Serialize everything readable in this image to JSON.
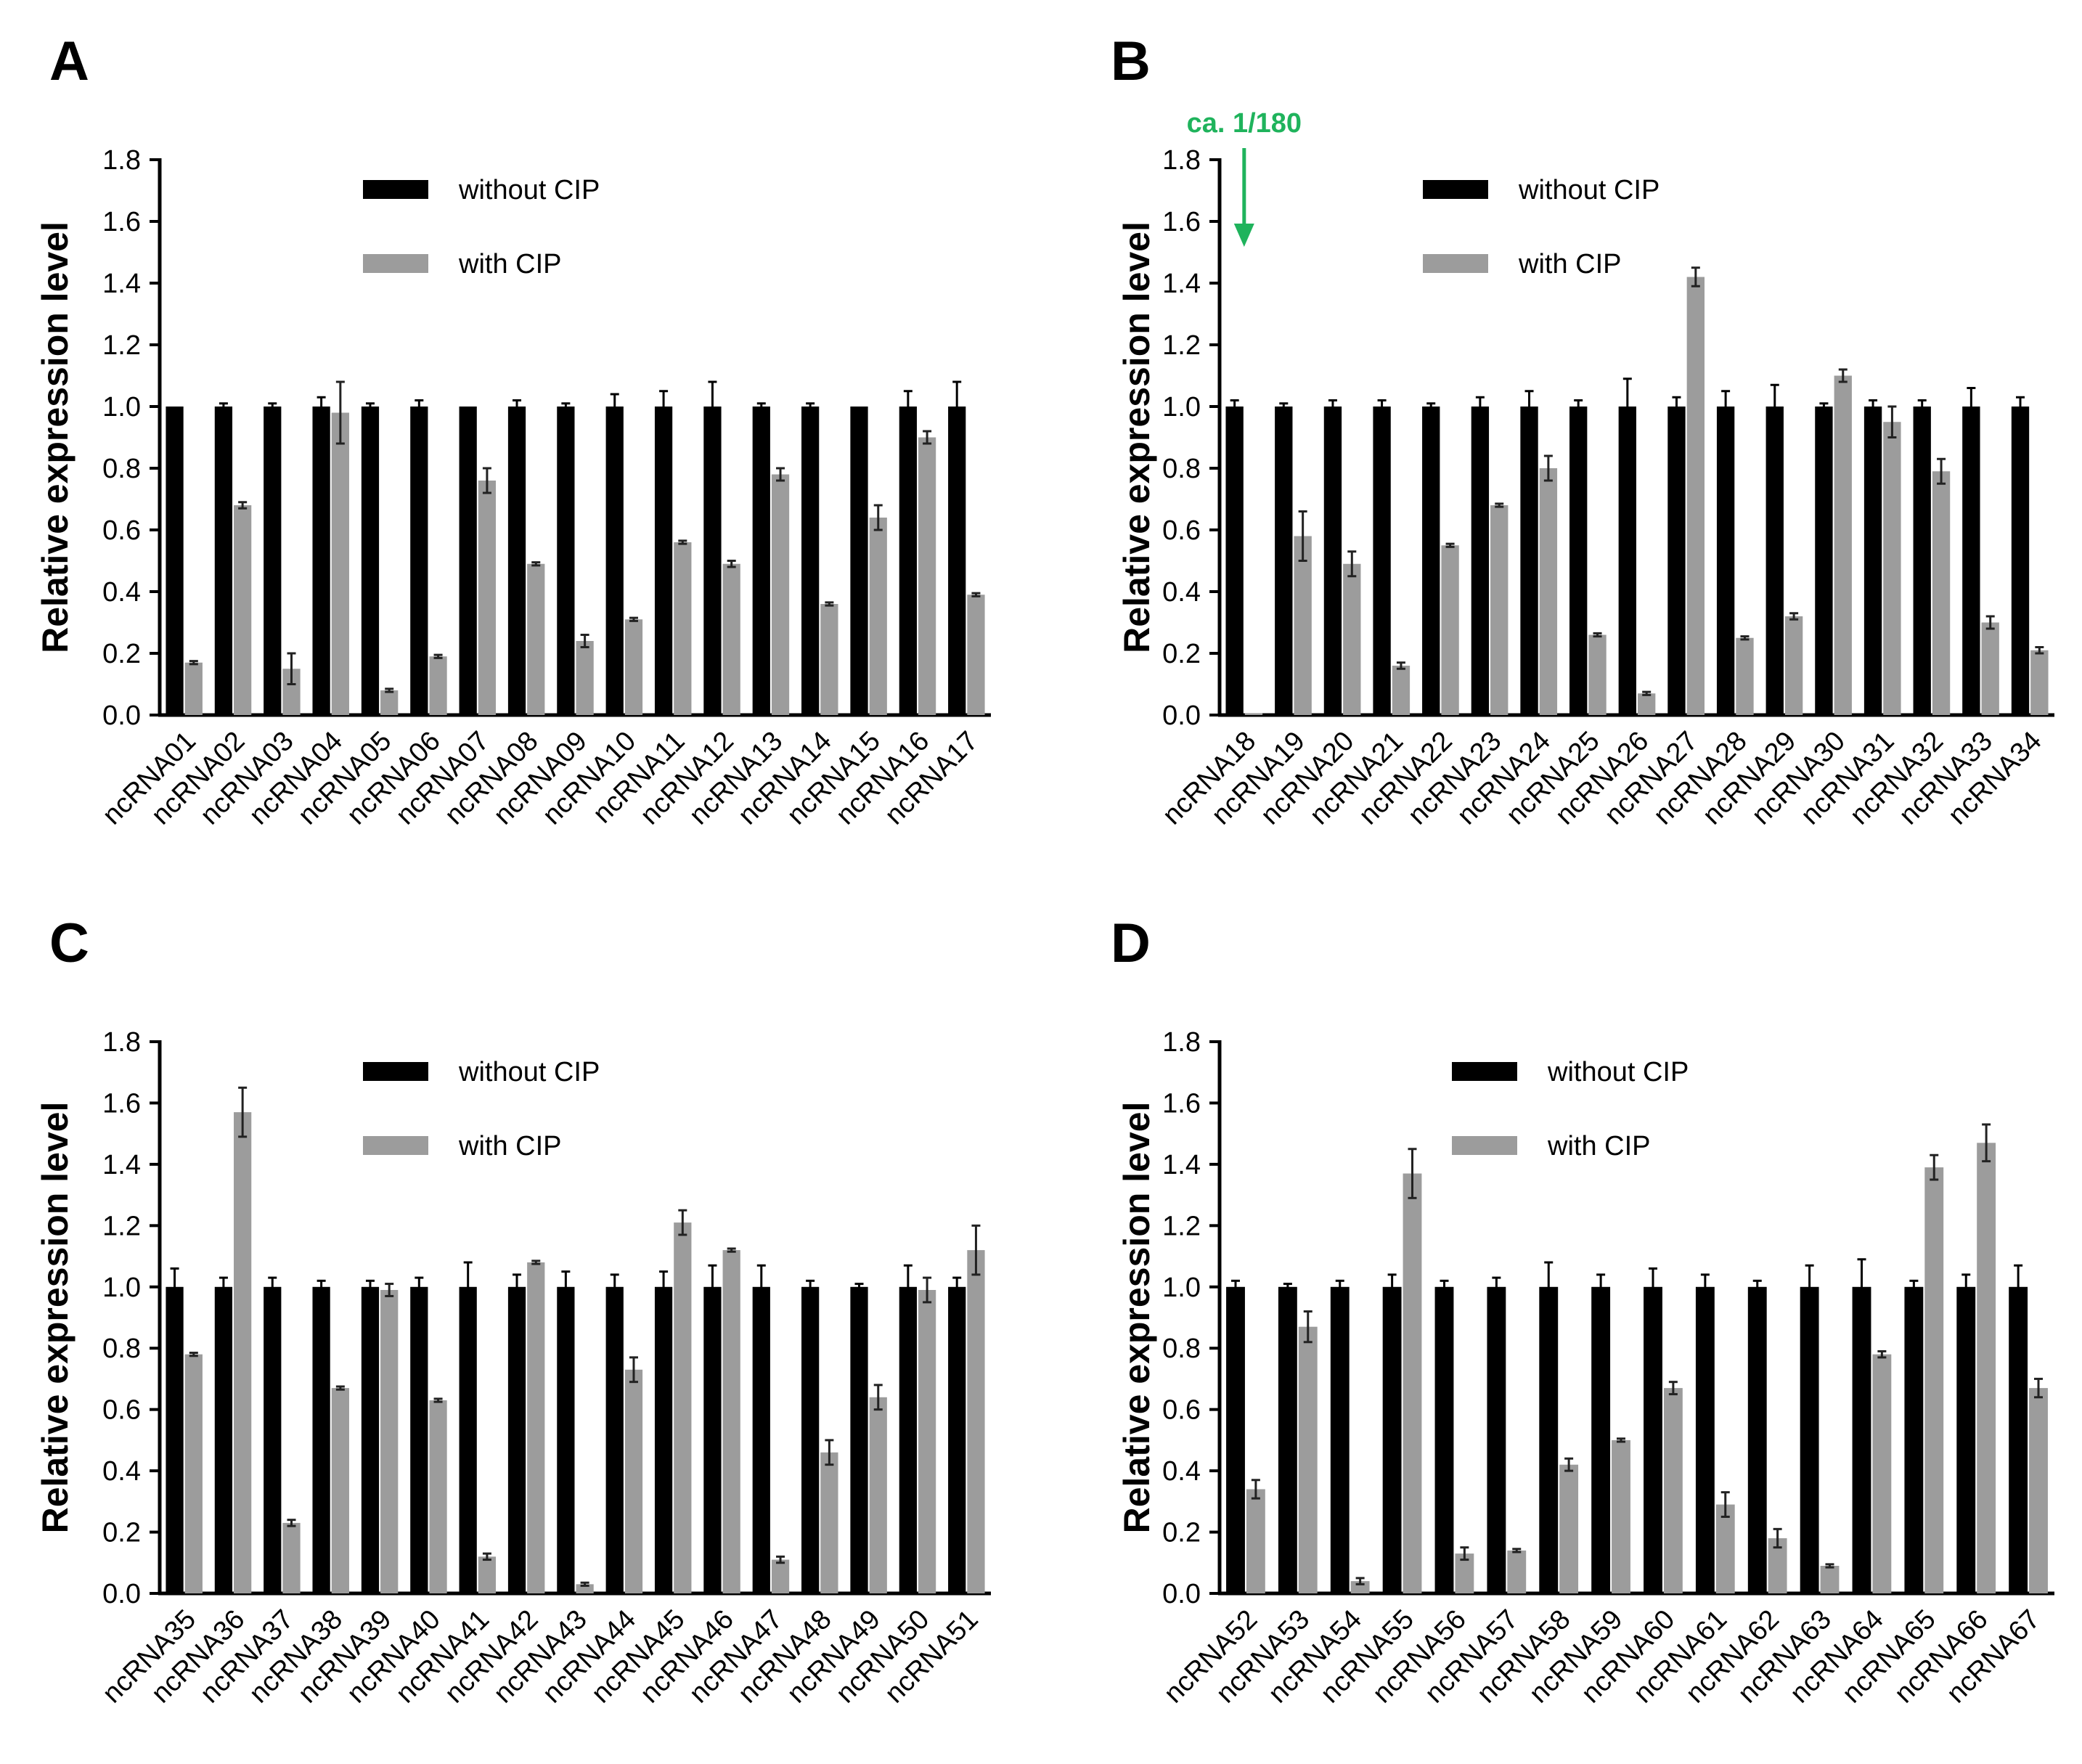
{
  "colors": {
    "without_cip": "#000000",
    "with_cip": "#9c9c9c",
    "annotation": "#1fb35c",
    "axis": "#000000"
  },
  "chart_data": [
    {
      "panel_label": "A",
      "type": "bar",
      "title": "",
      "xlabel": "",
      "ylabel": "Relative expression level",
      "ylim": [
        0,
        1.8
      ],
      "yticks": [
        "0.0",
        "0.2",
        "0.4",
        "0.6",
        "0.8",
        "1.0",
        "1.2",
        "1.4",
        "1.6",
        "1.8"
      ],
      "legend_position": "top-center",
      "categories": [
        "ncRNA01",
        "ncRNA02",
        "ncRNA03",
        "ncRNA04",
        "ncRNA05",
        "ncRNA06",
        "ncRNA07",
        "ncRNA08",
        "ncRNA09",
        "ncRNA10",
        "ncRNA11",
        "ncRNA12",
        "ncRNA13",
        "ncRNA14",
        "ncRNA15",
        "ncRNA16",
        "ncRNA17"
      ],
      "series": [
        {
          "name": "without CIP",
          "values": [
            1.0,
            1.0,
            1.0,
            1.0,
            1.0,
            1.0,
            1.0,
            1.0,
            1.0,
            1.0,
            1.0,
            1.0,
            1.0,
            1.0,
            1.0,
            1.0,
            1.0
          ],
          "errors": [
            0.0,
            0.01,
            0.01,
            0.03,
            0.01,
            0.02,
            0.0,
            0.02,
            0.01,
            0.04,
            0.05,
            0.08,
            0.01,
            0.01,
            0.0,
            0.05,
            0.08
          ]
        },
        {
          "name": "with CIP",
          "values": [
            0.17,
            0.68,
            0.15,
            0.98,
            0.08,
            0.19,
            0.76,
            0.49,
            0.24,
            0.31,
            0.56,
            0.49,
            0.78,
            0.36,
            0.64,
            0.9,
            0.39
          ],
          "errors": [
            0.005,
            0.01,
            0.05,
            0.1,
            0.005,
            0.005,
            0.04,
            0.005,
            0.02,
            0.005,
            0.005,
            0.01,
            0.02,
            0.005,
            0.04,
            0.02,
            0.005
          ]
        }
      ]
    },
    {
      "panel_label": "B",
      "type": "bar",
      "title": "",
      "xlabel": "",
      "ylabel": "Relative expression level",
      "ylim": [
        0,
        1.8
      ],
      "yticks": [
        "0.0",
        "0.2",
        "0.4",
        "0.6",
        "0.8",
        "1.0",
        "1.2",
        "1.4",
        "1.6",
        "1.8"
      ],
      "legend_position": "top-center",
      "annotation": {
        "text": "ca. 1/180",
        "category": "ncRNA18"
      },
      "categories": [
        "ncRNA18",
        "ncRNA19",
        "ncRNA20",
        "ncRNA21",
        "ncRNA22",
        "ncRNA23",
        "ncRNA24",
        "ncRNA25",
        "ncRNA26",
        "ncRNA27",
        "ncRNA28",
        "ncRNA29",
        "ncRNA30",
        "ncRNA31",
        "ncRNA32",
        "ncRNA33",
        "ncRNA34"
      ],
      "series": [
        {
          "name": "without CIP",
          "values": [
            1.0,
            1.0,
            1.0,
            1.0,
            1.0,
            1.0,
            1.0,
            1.0,
            1.0,
            1.0,
            1.0,
            1.0,
            1.0,
            1.0,
            1.0,
            1.0,
            1.0
          ],
          "errors": [
            0.02,
            0.01,
            0.02,
            0.02,
            0.01,
            0.03,
            0.05,
            0.02,
            0.09,
            0.03,
            0.05,
            0.07,
            0.01,
            0.02,
            0.02,
            0.06,
            0.03
          ]
        },
        {
          "name": "with CIP",
          "values": [
            0.006,
            0.58,
            0.49,
            0.16,
            0.55,
            0.68,
            0.8,
            0.26,
            0.07,
            1.42,
            0.25,
            0.32,
            1.1,
            0.95,
            0.79,
            0.3,
            0.21
          ],
          "errors": [
            0.0,
            0.08,
            0.04,
            0.01,
            0.005,
            0.005,
            0.04,
            0.005,
            0.005,
            0.03,
            0.005,
            0.01,
            0.02,
            0.05,
            0.04,
            0.02,
            0.01
          ]
        }
      ]
    },
    {
      "panel_label": "C",
      "type": "bar",
      "title": "",
      "xlabel": "",
      "ylabel": "Relative expression level",
      "ylim": [
        0,
        1.8
      ],
      "yticks": [
        "0.0",
        "0.2",
        "0.4",
        "0.6",
        "0.8",
        "1.0",
        "1.2",
        "1.4",
        "1.6",
        "1.8"
      ],
      "legend_position": "top-center",
      "categories": [
        "ncRNA35",
        "ncRNA36",
        "ncRNA37",
        "ncRNA38",
        "ncRNA39",
        "ncRNA40",
        "ncRNA41",
        "ncRNA42",
        "ncRNA43",
        "ncRNA44",
        "ncRNA45",
        "ncRNA46",
        "ncRNA47",
        "ncRNA48",
        "ncRNA49",
        "ncRNA50",
        "ncRNA51"
      ],
      "series": [
        {
          "name": "without CIP",
          "values": [
            1.0,
            1.0,
            1.0,
            1.0,
            1.0,
            1.0,
            1.0,
            1.0,
            1.0,
            1.0,
            1.0,
            1.0,
            1.0,
            1.0,
            1.0,
            1.0,
            1.0
          ],
          "errors": [
            0.06,
            0.03,
            0.03,
            0.02,
            0.02,
            0.03,
            0.08,
            0.04,
            0.05,
            0.04,
            0.05,
            0.07,
            0.07,
            0.02,
            0.01,
            0.07,
            0.03
          ]
        },
        {
          "name": "with CIP",
          "values": [
            0.78,
            1.57,
            0.23,
            0.67,
            0.99,
            0.63,
            0.12,
            1.08,
            0.03,
            0.73,
            1.21,
            1.12,
            0.11,
            0.46,
            0.64,
            0.99,
            1.12
          ],
          "errors": [
            0.005,
            0.08,
            0.01,
            0.005,
            0.02,
            0.005,
            0.01,
            0.005,
            0.005,
            0.04,
            0.04,
            0.005,
            0.01,
            0.04,
            0.04,
            0.04,
            0.08
          ]
        }
      ]
    },
    {
      "panel_label": "D",
      "type": "bar",
      "title": "",
      "xlabel": "",
      "ylabel": "Relative expression level",
      "ylim": [
        0,
        1.8
      ],
      "yticks": [
        "0.0",
        "0.2",
        "0.4",
        "0.6",
        "0.8",
        "1.0",
        "1.2",
        "1.4",
        "1.6",
        "1.8"
      ],
      "legend_position": "top-center",
      "categories": [
        "ncRNA52",
        "ncRNA53",
        "ncRNA54",
        "ncRNA55",
        "ncRNA56",
        "ncRNA57",
        "ncRNA58",
        "ncRNA59",
        "ncRNA60",
        "ncRNA61",
        "ncRNA62",
        "ncRNA63",
        "ncRNA64",
        "ncRNA65",
        "ncRNA66",
        "ncRNA67"
      ],
      "series": [
        {
          "name": "without CIP",
          "values": [
            1.0,
            1.0,
            1.0,
            1.0,
            1.0,
            1.0,
            1.0,
            1.0,
            1.0,
            1.0,
            1.0,
            1.0,
            1.0,
            1.0,
            1.0,
            1.0
          ],
          "errors": [
            0.02,
            0.01,
            0.02,
            0.04,
            0.02,
            0.03,
            0.08,
            0.04,
            0.06,
            0.04,
            0.02,
            0.07,
            0.09,
            0.02,
            0.04,
            0.07
          ]
        },
        {
          "name": "with CIP",
          "values": [
            0.34,
            0.87,
            0.04,
            1.37,
            0.13,
            0.14,
            0.42,
            0.5,
            0.67,
            0.29,
            0.18,
            0.09,
            0.78,
            1.39,
            1.47,
            0.67
          ],
          "errors": [
            0.03,
            0.05,
            0.01,
            0.08,
            0.02,
            0.005,
            0.02,
            0.005,
            0.02,
            0.04,
            0.03,
            0.005,
            0.01,
            0.04,
            0.06,
            0.03
          ]
        }
      ]
    }
  ]
}
